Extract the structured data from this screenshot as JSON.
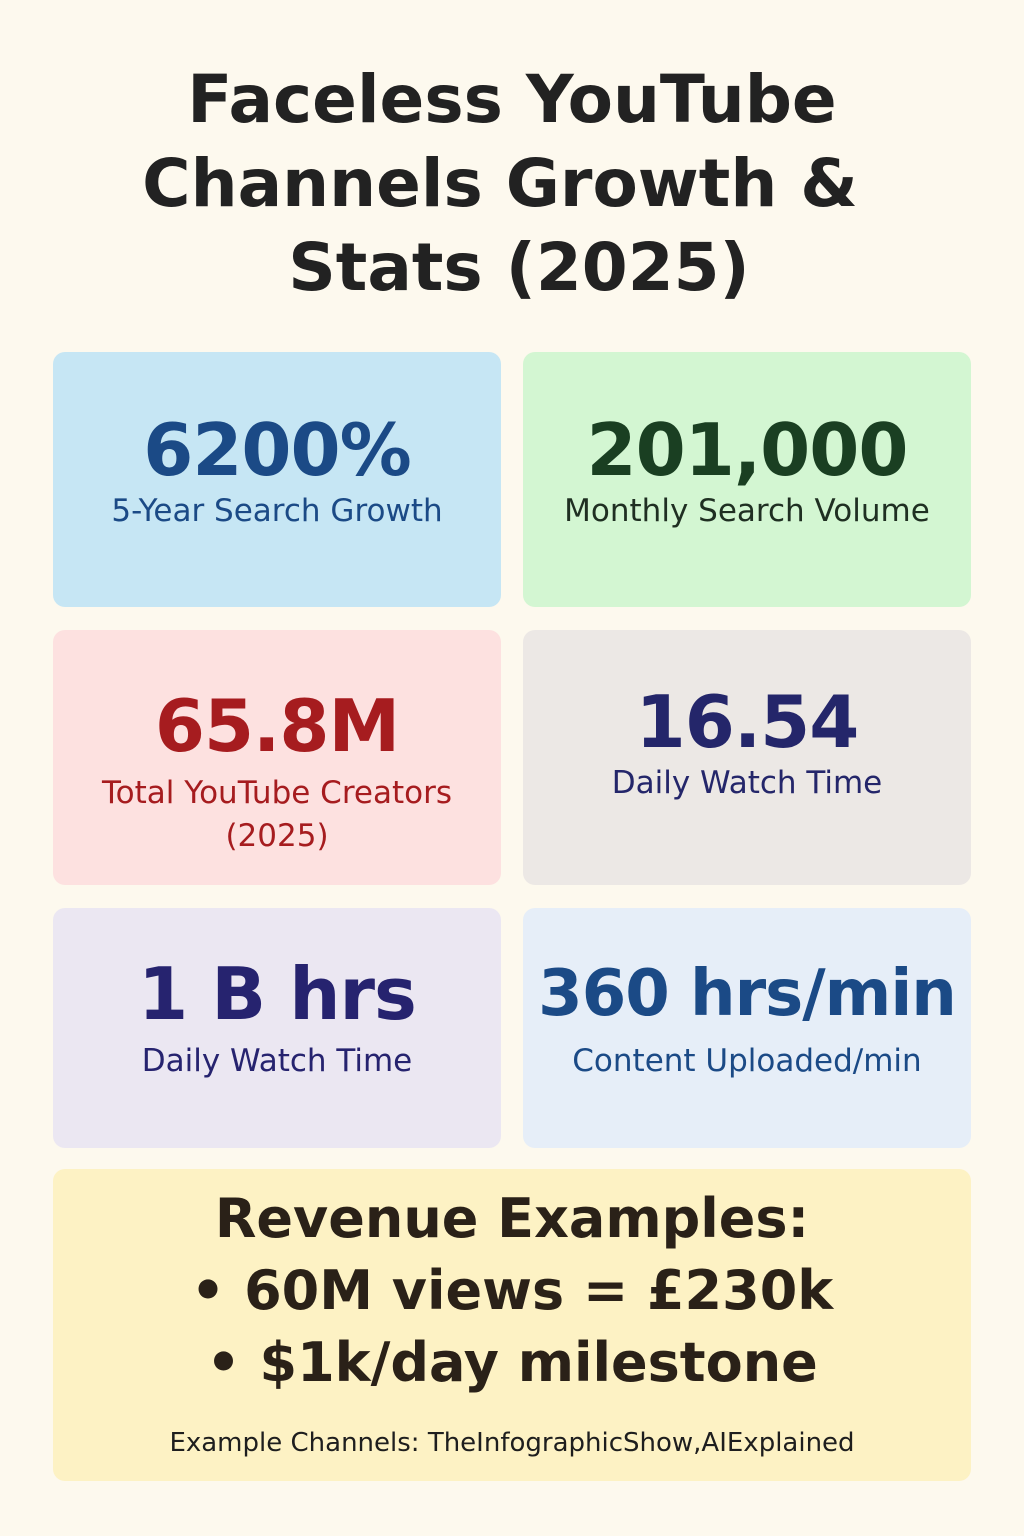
{
  "title": {
    "line1": "Faceless YouTube",
    "line2": "Channels Growth &",
    "line3": "Stats (2025)"
  },
  "colors": {
    "page_background": "#fdf9ee",
    "card_blue": "#c6e6f4",
    "card_green": "#d3f6d2",
    "card_pink": "#fde1e0",
    "card_grey": "#ece8e5",
    "card_lavender": "#ebe7f2",
    "card_light_blue": "#e6eef8",
    "card_yellow": "#fdf2c4"
  },
  "stats": [
    {
      "value": "6200%",
      "label": "5-Year Search Growth"
    },
    {
      "value": "201,000",
      "label": "Monthly Search Volume"
    },
    {
      "value": "65.8M",
      "label": "Total YouTube Creators (2025)"
    },
    {
      "value": "16.54",
      "label": "Daily Watch Time"
    },
    {
      "value": "1 B hrs",
      "label": "Daily Watch Time"
    },
    {
      "value": "360 hrs/min",
      "label": "Content Uploaded/min"
    }
  ],
  "revenue": {
    "heading": "Revenue Examples:",
    "items": [
      "• 60M views = £230k",
      "• $1k/day milestone"
    ],
    "example_channels": "Example Channels: TheInfographicShow,AIExplained"
  }
}
